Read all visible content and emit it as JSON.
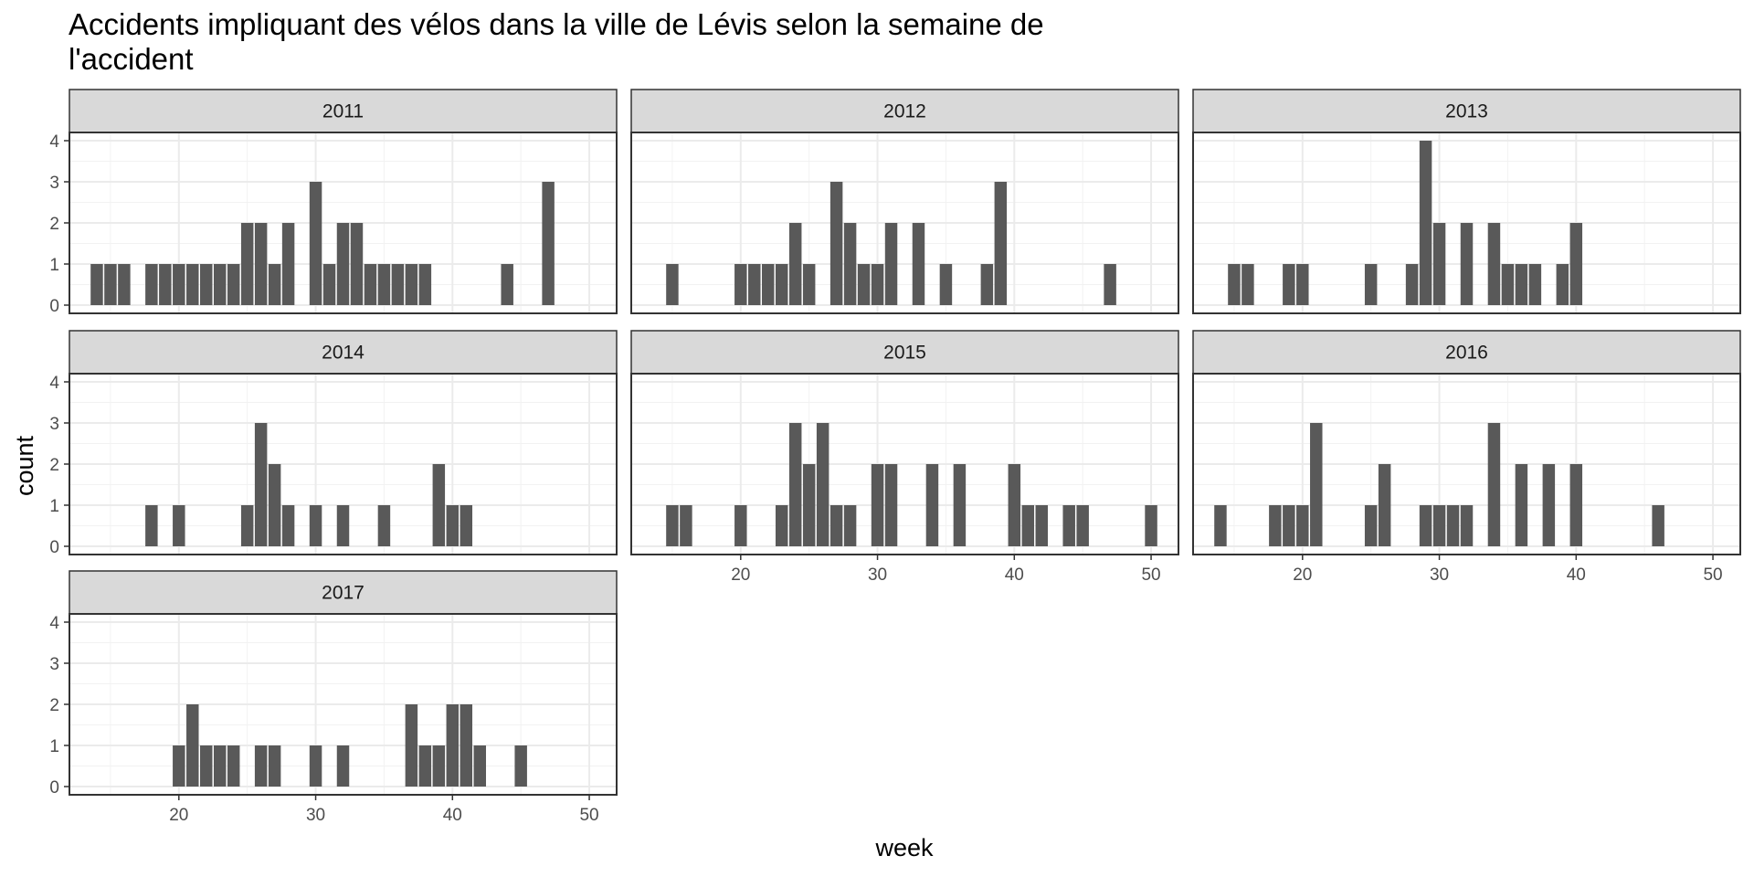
{
  "chart_data": {
    "type": "bar",
    "title": "Accidents impliquant des vélos dans la ville de Lévis selon la semaine de l'accident",
    "xlabel": "week",
    "ylabel": "count",
    "xlim": [
      12,
      52
    ],
    "ylim": [
      0,
      4
    ],
    "x_ticks": [
      20,
      30,
      40,
      50
    ],
    "y_ticks": [
      0,
      1,
      2,
      3,
      4
    ],
    "grid": true,
    "bar_color": "#595959",
    "strip_color": "#d9d9d9",
    "facets": [
      {
        "label": "2011",
        "weeks": [
          14,
          15,
          16,
          18,
          19,
          20,
          21,
          22,
          23,
          24,
          25,
          26,
          27,
          28,
          30,
          31,
          32,
          33,
          34,
          35,
          36,
          37,
          38,
          44,
          47
        ],
        "counts": [
          1,
          1,
          1,
          1,
          1,
          1,
          1,
          1,
          1,
          1,
          2,
          2,
          1,
          2,
          3,
          1,
          2,
          2,
          1,
          1,
          1,
          1,
          1,
          1,
          3
        ]
      },
      {
        "label": "2012",
        "weeks": [
          15,
          20,
          21,
          22,
          23,
          24,
          25,
          27,
          28,
          29,
          30,
          31,
          33,
          35,
          38,
          39,
          47
        ],
        "counts": [
          1,
          1,
          1,
          1,
          1,
          2,
          1,
          3,
          2,
          1,
          1,
          2,
          2,
          1,
          1,
          3,
          1
        ]
      },
      {
        "label": "2013",
        "weeks": [
          15,
          16,
          19,
          20,
          25,
          28,
          29,
          30,
          32,
          34,
          35,
          36,
          37,
          39,
          40
        ],
        "counts": [
          1,
          1,
          1,
          1,
          1,
          1,
          4,
          2,
          2,
          2,
          1,
          1,
          1,
          1,
          2
        ]
      },
      {
        "label": "2014",
        "weeks": [
          18,
          20,
          25,
          26,
          27,
          28,
          30,
          32,
          35,
          39,
          40,
          41
        ],
        "counts": [
          1,
          1,
          1,
          3,
          2,
          1,
          1,
          1,
          1,
          2,
          1,
          1
        ]
      },
      {
        "label": "2015",
        "weeks": [
          15,
          16,
          20,
          23,
          24,
          25,
          26,
          27,
          28,
          30,
          31,
          34,
          36,
          40,
          41,
          42,
          44,
          45,
          50
        ],
        "counts": [
          1,
          1,
          1,
          1,
          3,
          2,
          3,
          1,
          1,
          2,
          2,
          2,
          2,
          2,
          1,
          1,
          1,
          1,
          1
        ]
      },
      {
        "label": "2016",
        "weeks": [
          14,
          18,
          19,
          20,
          21,
          25,
          26,
          29,
          30,
          31,
          32,
          34,
          36,
          38,
          40,
          46
        ],
        "counts": [
          1,
          1,
          1,
          1,
          3,
          1,
          2,
          1,
          1,
          1,
          1,
          3,
          2,
          2,
          2,
          1
        ]
      },
      {
        "label": "2017",
        "weeks": [
          20,
          21,
          22,
          23,
          24,
          26,
          27,
          30,
          32,
          37,
          38,
          39,
          40,
          41,
          42,
          45
        ],
        "counts": [
          1,
          2,
          1,
          1,
          1,
          1,
          1,
          1,
          1,
          2,
          1,
          1,
          2,
          2,
          1,
          1
        ]
      }
    ]
  }
}
